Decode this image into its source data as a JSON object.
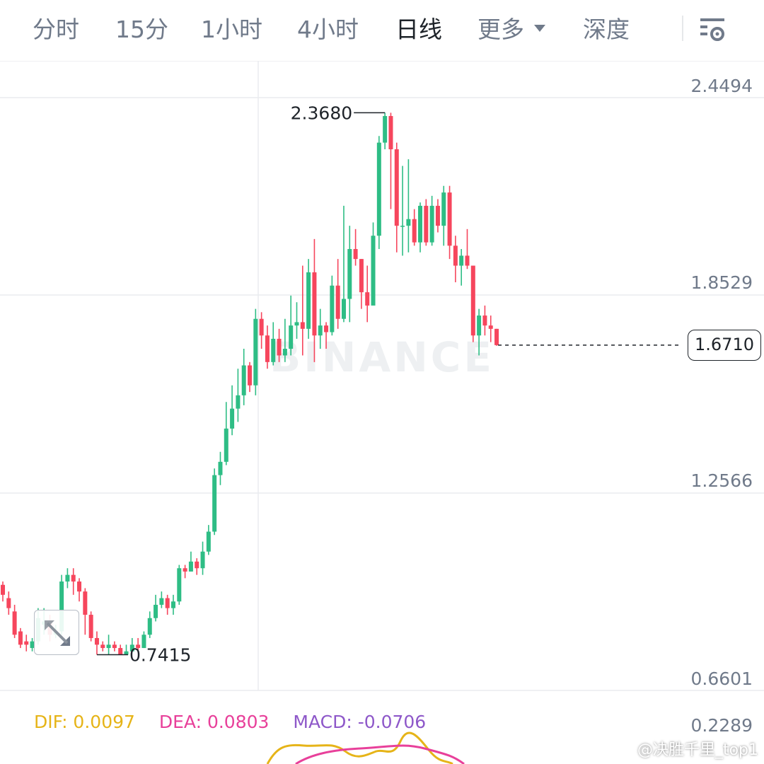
{
  "tabs": [
    {
      "label": "分时",
      "active": false
    },
    {
      "label": "15分",
      "active": false
    },
    {
      "label": "1小时",
      "active": false
    },
    {
      "label": "4小时",
      "active": false
    },
    {
      "label": "日线",
      "active": true
    },
    {
      "label": "更多",
      "active": false
    },
    {
      "label": "深度",
      "active": false
    }
  ],
  "settings_icon": "chart-settings-icon",
  "chart": {
    "watermark": "BINANCE",
    "price_axis": [
      "2.4494",
      "1.8529",
      "1.2566",
      "0.6601"
    ],
    "high_marker": "2.3680",
    "low_marker": "0.7415",
    "current_price": "1.6710",
    "colors": {
      "up": "#2ebd85",
      "down": "#f6465d",
      "grid": "#eaecef",
      "text": "#707a8a"
    }
  },
  "chart_data": {
    "type": "candlestick",
    "ylim": [
      0.6601,
      2.4494
    ],
    "candles": [
      [
        0.95,
        0.92,
        0.96,
        0.9
      ],
      [
        0.91,
        0.88,
        0.93,
        0.86
      ],
      [
        0.87,
        0.8,
        0.89,
        0.79
      ],
      [
        0.81,
        0.77,
        0.82,
        0.76
      ],
      [
        0.78,
        0.77,
        0.8,
        0.75
      ],
      [
        0.76,
        0.78,
        0.79,
        0.75
      ],
      [
        0.78,
        0.85,
        0.88,
        0.77
      ],
      [
        0.83,
        0.84,
        0.88,
        0.8
      ],
      [
        0.84,
        0.8,
        0.86,
        0.78
      ],
      [
        0.8,
        0.81,
        0.83,
        0.79
      ],
      [
        0.81,
        0.96,
        0.98,
        0.8
      ],
      [
        0.96,
        0.98,
        1.0,
        0.94
      ],
      [
        0.98,
        0.96,
        1.0,
        0.92
      ],
      [
        0.96,
        0.93,
        0.97,
        0.9
      ],
      [
        0.93,
        0.86,
        0.94,
        0.8
      ],
      [
        0.86,
        0.79,
        0.87,
        0.78
      ],
      [
        0.79,
        0.77,
        0.81,
        0.74
      ],
      [
        0.77,
        0.76,
        0.78,
        0.75
      ],
      [
        0.76,
        0.77,
        0.8,
        0.74
      ],
      [
        0.77,
        0.76,
        0.78,
        0.75
      ],
      [
        0.76,
        0.74,
        0.77,
        0.74
      ],
      [
        0.74,
        0.75,
        0.77,
        0.74
      ],
      [
        0.75,
        0.77,
        0.79,
        0.75
      ],
      [
        0.77,
        0.76,
        0.79,
        0.75
      ],
      [
        0.76,
        0.8,
        0.81,
        0.76
      ],
      [
        0.8,
        0.85,
        0.87,
        0.79
      ],
      [
        0.85,
        0.89,
        0.92,
        0.84
      ],
      [
        0.89,
        0.91,
        0.93,
        0.88
      ],
      [
        0.91,
        0.88,
        0.92,
        0.86
      ],
      [
        0.88,
        0.9,
        0.92,
        0.86
      ],
      [
        0.9,
        1.0,
        1.01,
        0.89
      ],
      [
        1.0,
        0.99,
        1.01,
        0.97
      ],
      [
        0.99,
        1.02,
        1.05,
        0.99
      ],
      [
        1.02,
        1.0,
        1.03,
        0.98
      ],
      [
        1.0,
        1.05,
        1.08,
        0.98
      ],
      [
        1.05,
        1.11,
        1.13,
        1.04
      ],
      [
        1.11,
        1.28,
        1.3,
        1.1
      ],
      [
        1.28,
        1.32,
        1.35,
        1.25
      ],
      [
        1.32,
        1.42,
        1.5,
        1.31
      ],
      [
        1.42,
        1.48,
        1.55,
        1.4
      ],
      [
        1.48,
        1.52,
        1.6,
        1.44
      ],
      [
        1.52,
        1.61,
        1.66,
        1.49
      ],
      [
        1.61,
        1.55,
        1.62,
        1.53
      ],
      [
        1.55,
        1.75,
        1.78,
        1.52
      ],
      [
        1.75,
        1.7,
        1.77,
        1.66
      ],
      [
        1.7,
        1.62,
        1.73,
        1.6
      ],
      [
        1.62,
        1.69,
        1.74,
        1.61
      ],
      [
        1.69,
        1.64,
        1.72,
        1.62
      ],
      [
        1.64,
        1.66,
        1.75,
        1.62
      ],
      [
        1.66,
        1.73,
        1.82,
        1.64
      ],
      [
        1.73,
        1.74,
        1.8,
        1.69
      ],
      [
        1.74,
        1.72,
        1.91,
        1.64
      ],
      [
        1.72,
        1.89,
        1.93,
        1.69
      ],
      [
        1.89,
        1.7,
        1.99,
        1.62
      ],
      [
        1.7,
        1.73,
        1.78,
        1.66
      ],
      [
        1.73,
        1.71,
        1.74,
        1.66
      ],
      [
        1.71,
        1.85,
        1.88,
        1.7
      ],
      [
        1.85,
        1.75,
        1.93,
        1.72
      ],
      [
        1.75,
        1.81,
        2.09,
        1.74
      ],
      [
        1.81,
        1.96,
        2.03,
        1.74
      ],
      [
        1.96,
        1.93,
        2.02,
        1.91
      ],
      [
        1.93,
        1.83,
        1.93,
        1.78
      ],
      [
        1.83,
        1.79,
        1.91,
        1.74
      ],
      [
        1.79,
        2.0,
        2.04,
        1.81
      ],
      [
        2.0,
        2.28,
        2.3,
        1.96
      ],
      [
        2.28,
        2.36,
        2.37,
        2.26
      ],
      [
        2.36,
        2.26,
        2.37,
        2.08
      ],
      [
        2.26,
        2.03,
        2.28,
        1.95
      ],
      [
        2.03,
        2.03,
        2.21,
        1.94
      ],
      [
        2.03,
        2.05,
        2.23,
        1.95
      ],
      [
        2.05,
        1.98,
        2.08,
        1.97
      ],
      [
        1.98,
        2.09,
        2.1,
        1.95
      ],
      [
        2.09,
        1.98,
        2.11,
        1.97
      ],
      [
        1.98,
        2.09,
        2.12,
        1.97
      ],
      [
        2.09,
        2.03,
        2.11,
        2.01
      ],
      [
        2.03,
        2.13,
        2.15,
        1.97
      ],
      [
        2.13,
        1.97,
        2.15,
        1.93
      ],
      [
        1.97,
        1.91,
        2.0,
        1.86
      ],
      [
        1.91,
        1.94,
        1.96,
        1.85
      ],
      [
        1.94,
        1.91,
        2.02,
        1.9
      ],
      [
        1.91,
        1.7,
        1.91,
        1.68
      ],
      [
        1.7,
        1.76,
        1.78,
        1.64
      ],
      [
        1.76,
        1.73,
        1.79,
        1.7
      ],
      [
        1.73,
        1.72,
        1.76,
        1.68
      ],
      [
        1.72,
        1.671,
        1.72,
        1.669
      ]
    ],
    "macd": {
      "DIF": "0.0097",
      "DEA": "0.0803",
      "MACD": "-0.0706",
      "axis": "0.2289"
    }
  },
  "macd_legend": {
    "dif": "DIF: 0.0097",
    "dea": "DEA: 0.0803",
    "macd": "MACD: -0.0706"
  },
  "user_watermark": "@决胜千里_top1"
}
